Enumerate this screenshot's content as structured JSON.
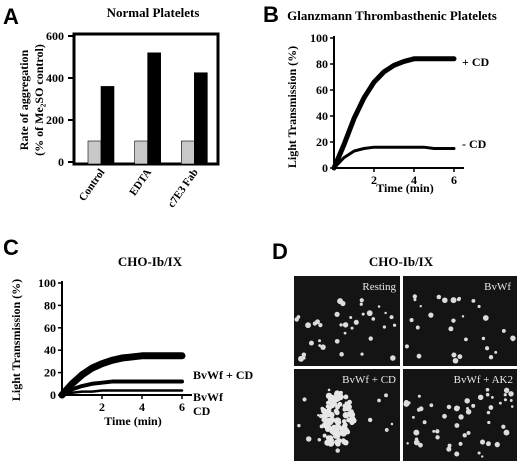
{
  "chart_data": [
    {
      "panel": "A",
      "type": "bar",
      "title": "Normal Platelets",
      "ylabel": "Rate of aggregation (% of Me₂SO control)",
      "ylabel_line1": "Rate of aggregation",
      "ylabel_line2": "(% of Me₂SO control)",
      "ylim": [
        0,
        600
      ],
      "yticks": [
        "0",
        "200",
        "400",
        "600"
      ],
      "categories": [
        "Control",
        "EDTA",
        "c7E3 Fab"
      ],
      "series": [
        {
          "values": [
            100,
            100,
            100
          ],
          "color": "#c8c8c8"
        },
        {
          "values": [
            360,
            520,
            425
          ],
          "color": "#000000"
        }
      ]
    },
    {
      "panel": "B",
      "type": "line",
      "title": "Glanzmann Thrombasthenic Platelets",
      "xlabel": "Time (min)",
      "ylabel": "Light Transmission (%)",
      "xlim": [
        0,
        6.5
      ],
      "ylim": [
        0,
        100
      ],
      "xticks": [
        "2",
        "4",
        "6"
      ],
      "yticks": [
        "0",
        "20",
        "40",
        "60",
        "80",
        "100"
      ],
      "series": [
        {
          "name": "+ CD",
          "x": [
            0,
            0.5,
            1,
            1.5,
            2,
            2.5,
            3,
            3.5,
            4,
            4.5,
            5,
            5.5,
            6
          ],
          "values": [
            0,
            18,
            38,
            54,
            66,
            74,
            79,
            82,
            84,
            84,
            84,
            84,
            84
          ]
        },
        {
          "name": "- CD",
          "x": [
            0,
            0.5,
            1,
            1.5,
            2,
            2.5,
            3,
            3.5,
            4,
            4.5,
            5,
            5.5,
            6
          ],
          "values": [
            0,
            8,
            13,
            15,
            16,
            16,
            16,
            16,
            16,
            16,
            15,
            15,
            15
          ]
        }
      ]
    },
    {
      "panel": "C",
      "type": "line",
      "title": "CHO-Ib/IX",
      "xlabel": "Time (min)",
      "ylabel": "Light Transmission (%)",
      "xlim": [
        0,
        6.5
      ],
      "ylim": [
        0,
        100
      ],
      "xticks": [
        "2",
        "4",
        "6"
      ],
      "yticks": [
        "0",
        "20",
        "40",
        "60",
        "80",
        "100"
      ],
      "series": [
        {
          "name": "BvWf + CD",
          "x": [
            0,
            0.5,
            1,
            1.5,
            2,
            2.5,
            3,
            3.5,
            4,
            4.5,
            5,
            5.5,
            6
          ],
          "values": [
            0,
            10,
            18,
            24,
            28,
            31,
            33,
            34,
            35,
            35,
            35,
            35,
            35
          ]
        },
        {
          "name": "BvWf",
          "x": [
            0,
            0.5,
            1,
            1.5,
            2,
            2.5,
            3,
            3.5,
            4,
            4.5,
            5,
            5.5,
            6
          ],
          "values": [
            0,
            5,
            8,
            10,
            11,
            12,
            12,
            12,
            12,
            12,
            12,
            12,
            12
          ]
        },
        {
          "name": "CD",
          "x": [
            0,
            0.5,
            1,
            1.5,
            2,
            2.5,
            3,
            3.5,
            4,
            4.5,
            5,
            5.5,
            6
          ],
          "values": [
            0,
            2,
            3,
            3,
            4,
            4,
            4,
            4,
            4,
            4,
            4,
            4,
            4
          ]
        }
      ]
    }
  ],
  "panels": {
    "A": {
      "letter": "A"
    },
    "B": {
      "letter": "B"
    },
    "C": {
      "letter": "C"
    },
    "D": {
      "letter": "D",
      "title": "CHO-Ib/IX",
      "micrographs": [
        "Resting",
        "BvWf",
        "BvWf + CD",
        "BvWf + AK2"
      ]
    }
  }
}
